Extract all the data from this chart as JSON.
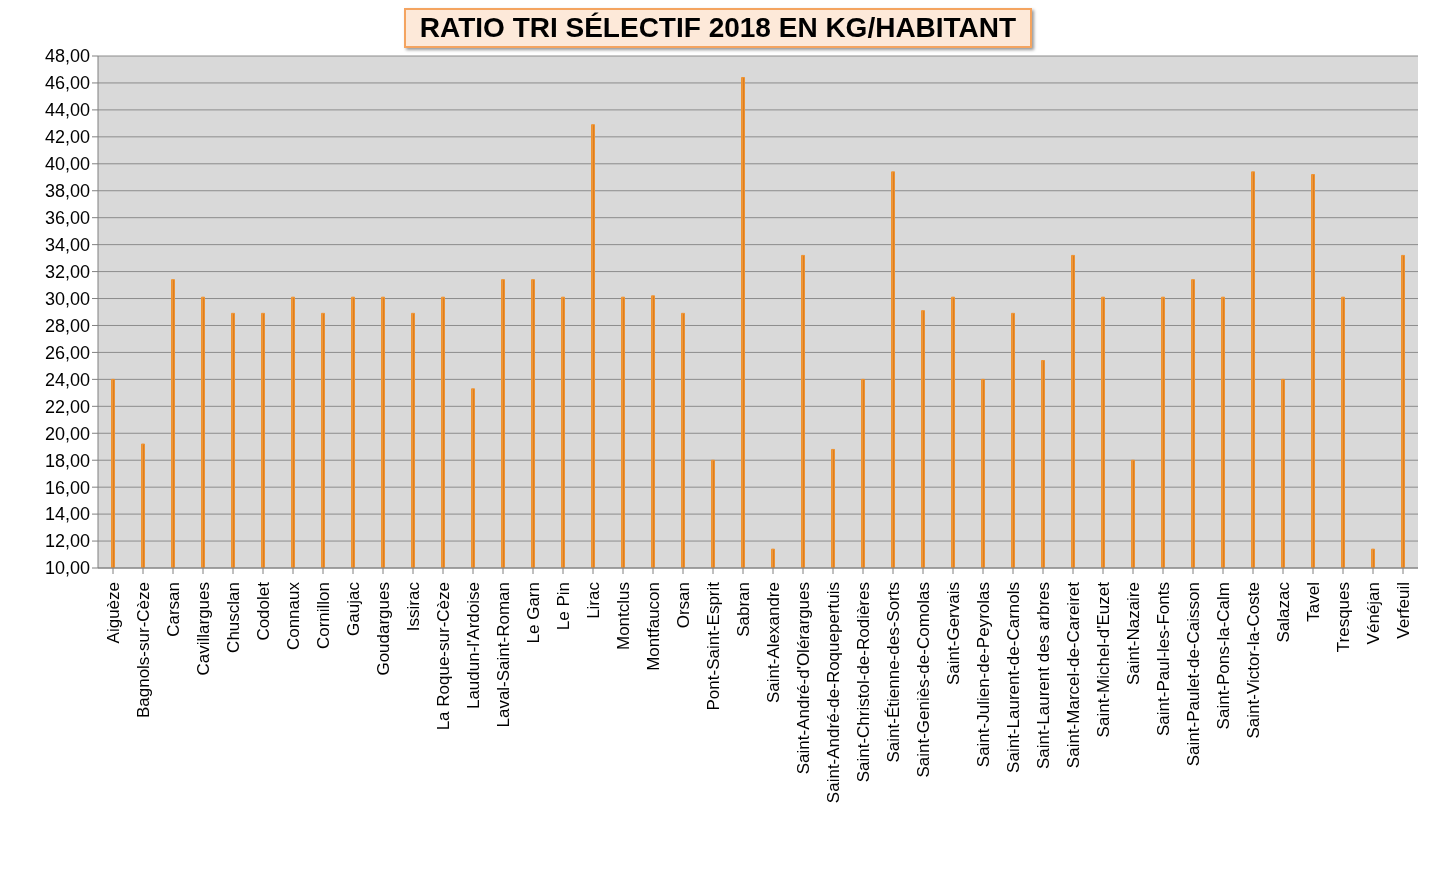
{
  "chart_data": {
    "type": "bar",
    "title": "RATIO TRI SÉLECTIF 2018 EN KG/HABITANT",
    "categories": [
      "Aiguèze",
      "Bagnols-sur-Cèze",
      "Carsan",
      "Cavillargues",
      "Chusclan",
      "Codolet",
      "Connaux",
      "Cornillon",
      "Gaujac",
      "Goudargues",
      "Issirac",
      "La Roque-sur-Cèze",
      "Laudun-l'Ardoise",
      "Laval-Saint-Roman",
      "Le Garn",
      "Le Pin",
      "Lirac",
      "Montclus",
      "Montfaucon",
      "Orsan",
      "Pont-Saint-Esprit",
      "Sabran",
      "Saint-Alexandre",
      "Saint-André-d'Olérargues",
      "Saint-André-de-Roquepertuis",
      "Saint-Christol-de-Rodières",
      "Saint-Étienne-des-Sorts",
      "Saint-Geniès-de-Comolas",
      "Saint-Gervais",
      "Saint-Julien-de-Peyrolas",
      "Saint-Laurent-de-Carnols",
      "Saint-Laurent des arbres",
      "Saint-Marcel-de-Careiret",
      "Saint-Michel-d'Euzet",
      "Saint-Nazaire",
      "Saint-Paul-les-Fonts",
      "Saint-Paulet-de-Caisson",
      "Saint-Pons-la-Calm",
      "Saint-Victor-la-Coste",
      "Salazac",
      "Tavel",
      "Tresques",
      "Vénéjan",
      "Verfeuil"
    ],
    "values": [
      24.0,
      19.2,
      31.4,
      30.1,
      28.9,
      28.9,
      30.1,
      28.9,
      30.1,
      30.1,
      28.9,
      30.1,
      23.3,
      31.4,
      31.4,
      30.1,
      42.9,
      30.1,
      30.2,
      28.9,
      18.0,
      46.4,
      11.4,
      33.2,
      18.8,
      24.0,
      39.4,
      29.1,
      30.1,
      24.0,
      28.9,
      25.4,
      33.2,
      30.1,
      18.0,
      30.1,
      31.4,
      30.1,
      39.4,
      24.0,
      39.2,
      30.1,
      11.4,
      33.2
    ],
    "color": "#f0932f",
    "ylim": [
      10,
      48
    ],
    "yticks": [
      {
        "value": 10,
        "label": "10,00"
      },
      {
        "value": 12,
        "label": "12,00"
      },
      {
        "value": 14,
        "label": "14,00"
      },
      {
        "value": 16,
        "label": "16,00"
      },
      {
        "value": 18,
        "label": "18,00"
      },
      {
        "value": 20,
        "label": "20,00"
      },
      {
        "value": 22,
        "label": "22,00"
      },
      {
        "value": 24,
        "label": "24,00"
      },
      {
        "value": 26,
        "label": "26,00"
      },
      {
        "value": 28,
        "label": "28,00"
      },
      {
        "value": 30,
        "label": "30,00"
      },
      {
        "value": 32,
        "label": "32,00"
      },
      {
        "value": 34,
        "label": "34,00"
      },
      {
        "value": 36,
        "label": "36,00"
      },
      {
        "value": 38,
        "label": "38,00"
      },
      {
        "value": 40,
        "label": "40,00"
      },
      {
        "value": 42,
        "label": "42,00"
      },
      {
        "value": 44,
        "label": "44,00"
      },
      {
        "value": 46,
        "label": "46,00"
      },
      {
        "value": 48,
        "label": "48,00"
      }
    ],
    "grid": "y"
  }
}
